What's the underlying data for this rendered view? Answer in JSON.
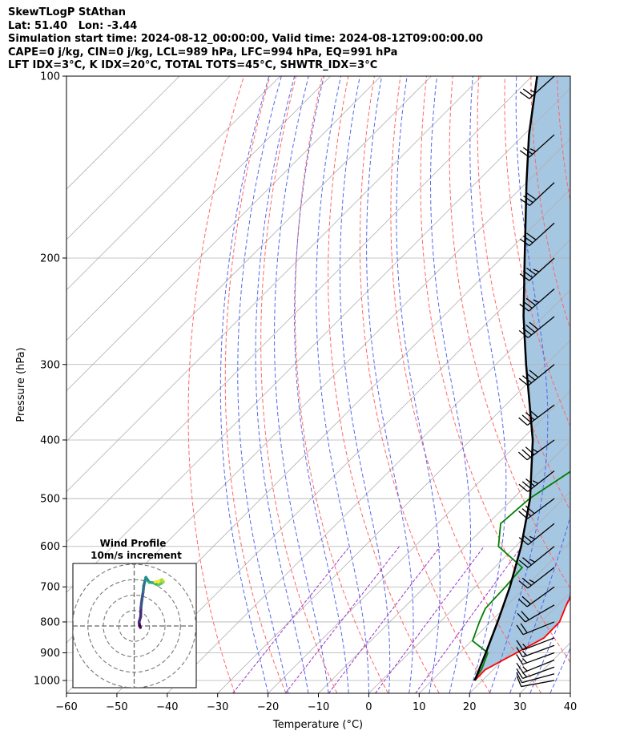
{
  "header": {
    "line1": "SkewTLogP StAthan",
    "line2": "Lat: 51.40   Lon: -3.44",
    "line3": "Simulation start time: 2024-08-12_00:00:00, Valid time: 2024-08-12T09:00:00.00",
    "line4": "CAPE=0 j/kg, CIN=0 j/kg, LCL=989 hPa, LFC=994 hPa, EQ=991 hPa",
    "line5": "LFT IDX=3°C, K IDX=20°C, TOTAL TOTS=45°C, SHWTR_IDX=3°C"
  },
  "colors": {
    "temperature": "#ff0000",
    "dewpoint": "#008000",
    "parcel": "#000000",
    "cape_fill": "#a0c4e0",
    "dry_adiabat": "#ff6666",
    "moist_adiabat": "#5566ee",
    "mixing_ratio": "#9933cc",
    "isotherm": "#b0b0b0"
  },
  "chart_data": [
    {
      "type": "line",
      "title": "",
      "xlabel": "Temperature (°C)",
      "ylabel": "Pressure (hPa)",
      "xlim": [
        -60,
        40
      ],
      "ylim": [
        1050,
        100
      ],
      "y_scale": "log",
      "x_ticks": [
        "−60",
        "−50",
        "−40",
        "−30",
        "−20",
        "−10",
        "0",
        "10",
        "20",
        "30",
        "40"
      ],
      "y_ticks": [
        "100",
        "200",
        "300",
        "400",
        "500",
        "600",
        "700",
        "800",
        "900",
        "1000"
      ],
      "grid": true,
      "background_lines": [
        "dry adiabats",
        "moist adiabats",
        "mixing ratio lines",
        "skewed isotherms"
      ],
      "series": [
        {
          "role": "temperature",
          "points": [
            {
              "p": 1000,
              "t": 18.5
            },
            {
              "p": 960,
              "t": 18.4
            },
            {
              "p": 900,
              "t": 21.3
            },
            {
              "p": 850,
              "t": 23.8
            },
            {
              "p": 800,
              "t": 23.7
            },
            {
              "p": 750,
              "t": 21.7
            },
            {
              "p": 700,
              "t": 20.0
            },
            {
              "p": 650,
              "t": 17.7
            },
            {
              "p": 600,
              "t": 15.2
            },
            {
              "p": 550,
              "t": 13.5
            },
            {
              "p": 500,
              "t": 11.9
            },
            {
              "p": 450,
              "t": 10.4
            },
            {
              "p": 400,
              "t": 8.6
            },
            {
              "p": 350,
              "t": 4.6
            },
            {
              "p": 300,
              "t": 0.1
            },
            {
              "p": 270,
              "t": -2.8
            },
            {
              "p": 240,
              "t": -4.5
            },
            {
              "p": 220,
              "t": -5.0
            },
            {
              "p": 200,
              "t": -4.5
            },
            {
              "p": 190,
              "t": -3.1
            },
            {
              "p": 175,
              "t": 1.2
            },
            {
              "p": 160,
              "t": 5.5
            },
            {
              "p": 150,
              "t": 7.7
            },
            {
              "p": 135,
              "t": 9.9
            },
            {
              "p": 120,
              "t": 12.3
            },
            {
              "p": 110,
              "t": 13.5
            },
            {
              "p": 100,
              "t": 15.8
            }
          ]
        },
        {
          "role": "dewpoint",
          "points": [
            {
              "p": 1000,
              "t": 18.3
            },
            {
              "p": 960,
              "t": 17.7
            },
            {
              "p": 900,
              "t": 15.6
            },
            {
              "p": 860,
              "t": 10.2
            },
            {
              "p": 800,
              "t": 7.8
            },
            {
              "p": 760,
              "t": 6.3
            },
            {
              "p": 700,
              "t": 6.0
            },
            {
              "p": 650,
              "t": 5.5
            },
            {
              "p": 600,
              "t": -3.4
            },
            {
              "p": 550,
              "t": -7.5
            },
            {
              "p": 500,
              "t": -6.7
            },
            {
              "p": 450,
              "t": -3.9
            },
            {
              "p": 400,
              "t": -4.6
            },
            {
              "p": 370,
              "t": -6.9
            },
            {
              "p": 320,
              "t": -8.0
            },
            {
              "p": 290,
              "t": -8.2
            },
            {
              "p": 260,
              "t": -10.7
            },
            {
              "p": 230,
              "t": -11.0
            },
            {
              "p": 200,
              "t": -11.0
            },
            {
              "p": 185,
              "t": -12.0
            },
            {
              "p": 170,
              "t": -13.0
            },
            {
              "p": 160,
              "t": -15.8
            },
            {
              "p": 150,
              "t": -20.3
            },
            {
              "p": 145,
              "t": -21.8
            },
            {
              "p": 135,
              "t": -17.8
            },
            {
              "p": 125,
              "t": -13.3
            },
            {
              "p": 112,
              "t": -8.9
            },
            {
              "p": 100,
              "t": -4.2
            }
          ]
        },
        {
          "role": "parcel",
          "points": [
            {
              "p": 1000,
              "t": 18.5
            },
            {
              "p": 900,
              "t": 15.2
            },
            {
              "p": 800,
              "t": 11.4
            },
            {
              "p": 700,
              "t": 6.9
            },
            {
              "p": 600,
              "t": 1.1
            },
            {
              "p": 500,
              "t": -6.6
            },
            {
              "p": 400,
              "t": -17.7
            },
            {
              "p": 300,
              "t": -34.0
            },
            {
              "p": 250,
              "t": -44.0
            },
            {
              "p": 200,
              "t": -55.4
            },
            {
              "p": 150,
              "t": -70.0
            },
            {
              "p": 125,
              "t": -79.0
            },
            {
              "p": 100,
              "t": -89.0
            }
          ]
        }
      ],
      "wind_barbs": [
        {
          "p": 1000,
          "u": 9.3,
          "v": 1.7
        },
        {
          "p": 975,
          "u": 11.8,
          "v": 3.2
        },
        {
          "p": 950,
          "u": 13.6,
          "v": 4.9
        },
        {
          "p": 925,
          "u": 13.9,
          "v": 5.6
        },
        {
          "p": 900,
          "u": 14.1,
          "v": 5.1
        },
        {
          "p": 875,
          "u": 15.0,
          "v": 5.5
        },
        {
          "p": 850,
          "u": 15.9,
          "v": 6.1
        },
        {
          "p": 800,
          "u": 17.3,
          "v": 7.0
        },
        {
          "p": 750,
          "u": 16.9,
          "v": 9.8
        },
        {
          "p": 700,
          "u": 16.9,
          "v": 12.3
        },
        {
          "p": 650,
          "u": 18.2,
          "v": 14.2
        },
        {
          "p": 600,
          "u": 19.2,
          "v": 15.5
        },
        {
          "p": 550,
          "u": 21.3,
          "v": 17.2
        },
        {
          "p": 500,
          "u": 24.0,
          "v": 18.0
        },
        {
          "p": 450,
          "u": 26.0,
          "v": 20.3
        },
        {
          "p": 400,
          "u": 29.0,
          "v": 21.1
        },
        {
          "p": 350,
          "u": 31.0,
          "v": 23.4
        },
        {
          "p": 300,
          "u": 31.0,
          "v": 25.0
        },
        {
          "p": 250,
          "u": 30.0,
          "v": 24.2
        },
        {
          "p": 225,
          "u": 27.0,
          "v": 23.4
        },
        {
          "p": 200,
          "u": 25.0,
          "v": 22.5
        },
        {
          "p": 175,
          "u": 23.0,
          "v": 21.0
        },
        {
          "p": 150,
          "u": 21.0,
          "v": 19.6
        },
        {
          "p": 125,
          "u": 20.0,
          "v": 18.0
        },
        {
          "p": 100,
          "u": 19.0,
          "v": 17.1
        }
      ]
    },
    {
      "type": "line",
      "title": "Wind Profile",
      "subtitle": "10m/s increment",
      "hodograph": {
        "ring_step_ms": 10,
        "rings": 4,
        "range_ms": [
          -40,
          40
        ],
        "points": [
          {
            "u": 4.0,
            "v": -1.0
          },
          {
            "u": 3.5,
            "v": 0.5
          },
          {
            "u": 3.2,
            "v": 2.5
          },
          {
            "u": 4.2,
            "v": 6.0
          },
          {
            "u": 4.4,
            "v": 12.0
          },
          {
            "u": 5.0,
            "v": 17.0
          },
          {
            "u": 5.8,
            "v": 22.0
          },
          {
            "u": 6.2,
            "v": 26.0
          },
          {
            "u": 7.2,
            "v": 30.0
          },
          {
            "u": 7.6,
            "v": 31.5
          },
          {
            "u": 9.8,
            "v": 28.3
          },
          {
            "u": 12.5,
            "v": 28.0
          },
          {
            "u": 15.5,
            "v": 26.5
          },
          {
            "u": 17.5,
            "v": 27.5
          },
          {
            "u": 19.0,
            "v": 28.5
          },
          {
            "u": 18.0,
            "v": 30.0
          },
          {
            "u": 16.0,
            "v": 29.0
          },
          {
            "u": 13.5,
            "v": 28.5
          }
        ]
      }
    }
  ]
}
